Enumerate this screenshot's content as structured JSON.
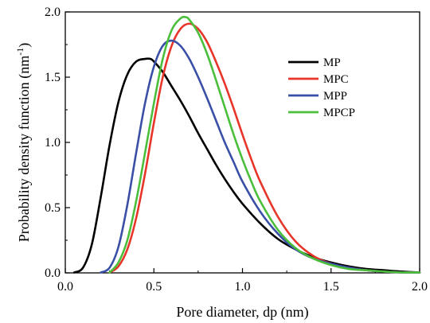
{
  "chart_data": {
    "type": "line",
    "xlabel": "Pore diameter, dp (nm)",
    "ylabel": "Probability density function (nm",
    "ylabel_sup": "-1",
    "ylabel_close": ")",
    "xlim": [
      0.0,
      2.0
    ],
    "ylim": [
      0.0,
      2.0
    ],
    "x_ticks": [
      "0.0",
      "0.5",
      "1.0",
      "1.5",
      "2.0"
    ],
    "y_ticks": [
      "0.0",
      "0.5",
      "1.0",
      "1.5",
      "2.0"
    ],
    "grid": false,
    "legend_position": "top-right",
    "series": [
      {
        "name": "MP",
        "color": "#000000",
        "x": [
          0.05,
          0.1,
          0.15,
          0.2,
          0.25,
          0.3,
          0.35,
          0.4,
          0.45,
          0.48,
          0.5,
          0.55,
          0.6,
          0.65,
          0.7,
          0.75,
          0.8,
          0.85,
          0.9,
          0.95,
          1.0,
          1.1,
          1.2,
          1.3,
          1.4,
          1.5,
          1.6,
          1.7,
          1.8,
          1.9,
          2.0
        ],
        "values": [
          0.0,
          0.04,
          0.22,
          0.58,
          0.98,
          1.31,
          1.52,
          1.62,
          1.64,
          1.64,
          1.62,
          1.54,
          1.43,
          1.32,
          1.2,
          1.07,
          0.95,
          0.83,
          0.72,
          0.62,
          0.53,
          0.38,
          0.26,
          0.18,
          0.12,
          0.08,
          0.05,
          0.03,
          0.02,
          0.01,
          0.0
        ]
      },
      {
        "name": "MPC",
        "color": "#e8352a",
        "x": [
          0.25,
          0.3,
          0.35,
          0.4,
          0.45,
          0.5,
          0.55,
          0.6,
          0.65,
          0.7,
          0.75,
          0.8,
          0.85,
          0.9,
          0.95,
          1.0,
          1.05,
          1.1,
          1.2,
          1.3,
          1.4,
          1.5,
          1.6,
          1.7,
          1.8,
          1.9,
          2.0
        ],
        "values": [
          0.0,
          0.05,
          0.18,
          0.42,
          0.76,
          1.15,
          1.5,
          1.74,
          1.87,
          1.91,
          1.87,
          1.77,
          1.62,
          1.45,
          1.26,
          1.06,
          0.87,
          0.7,
          0.43,
          0.24,
          0.13,
          0.07,
          0.04,
          0.02,
          0.01,
          0.0,
          0.0
        ]
      },
      {
        "name": "MPP",
        "color": "#3a4fa6",
        "x": [
          0.2,
          0.25,
          0.3,
          0.35,
          0.4,
          0.45,
          0.5,
          0.55,
          0.6,
          0.65,
          0.7,
          0.75,
          0.8,
          0.85,
          0.9,
          0.95,
          1.0,
          1.1,
          1.2,
          1.3,
          1.4,
          1.5,
          1.6,
          1.7,
          1.8,
          1.9,
          2.0
        ],
        "values": [
          0.0,
          0.04,
          0.2,
          0.52,
          0.92,
          1.3,
          1.58,
          1.74,
          1.78,
          1.74,
          1.64,
          1.5,
          1.34,
          1.17,
          1.0,
          0.85,
          0.7,
          0.47,
          0.3,
          0.18,
          0.11,
          0.07,
          0.04,
          0.02,
          0.01,
          0.0,
          0.0
        ]
      },
      {
        "name": "MPCP",
        "color": "#4bbf3c",
        "x": [
          0.25,
          0.3,
          0.35,
          0.4,
          0.45,
          0.5,
          0.55,
          0.6,
          0.65,
          0.68,
          0.7,
          0.75,
          0.8,
          0.85,
          0.9,
          0.95,
          1.0,
          1.05,
          1.1,
          1.2,
          1.3,
          1.4,
          1.5,
          1.6,
          1.7,
          1.8,
          1.9,
          2.0
        ],
        "values": [
          0.0,
          0.08,
          0.25,
          0.55,
          0.92,
          1.3,
          1.64,
          1.86,
          1.95,
          1.96,
          1.94,
          1.84,
          1.68,
          1.48,
          1.27,
          1.06,
          0.87,
          0.7,
          0.55,
          0.33,
          0.19,
          0.11,
          0.06,
          0.03,
          0.02,
          0.01,
          0.0,
          0.0
        ]
      }
    ]
  }
}
